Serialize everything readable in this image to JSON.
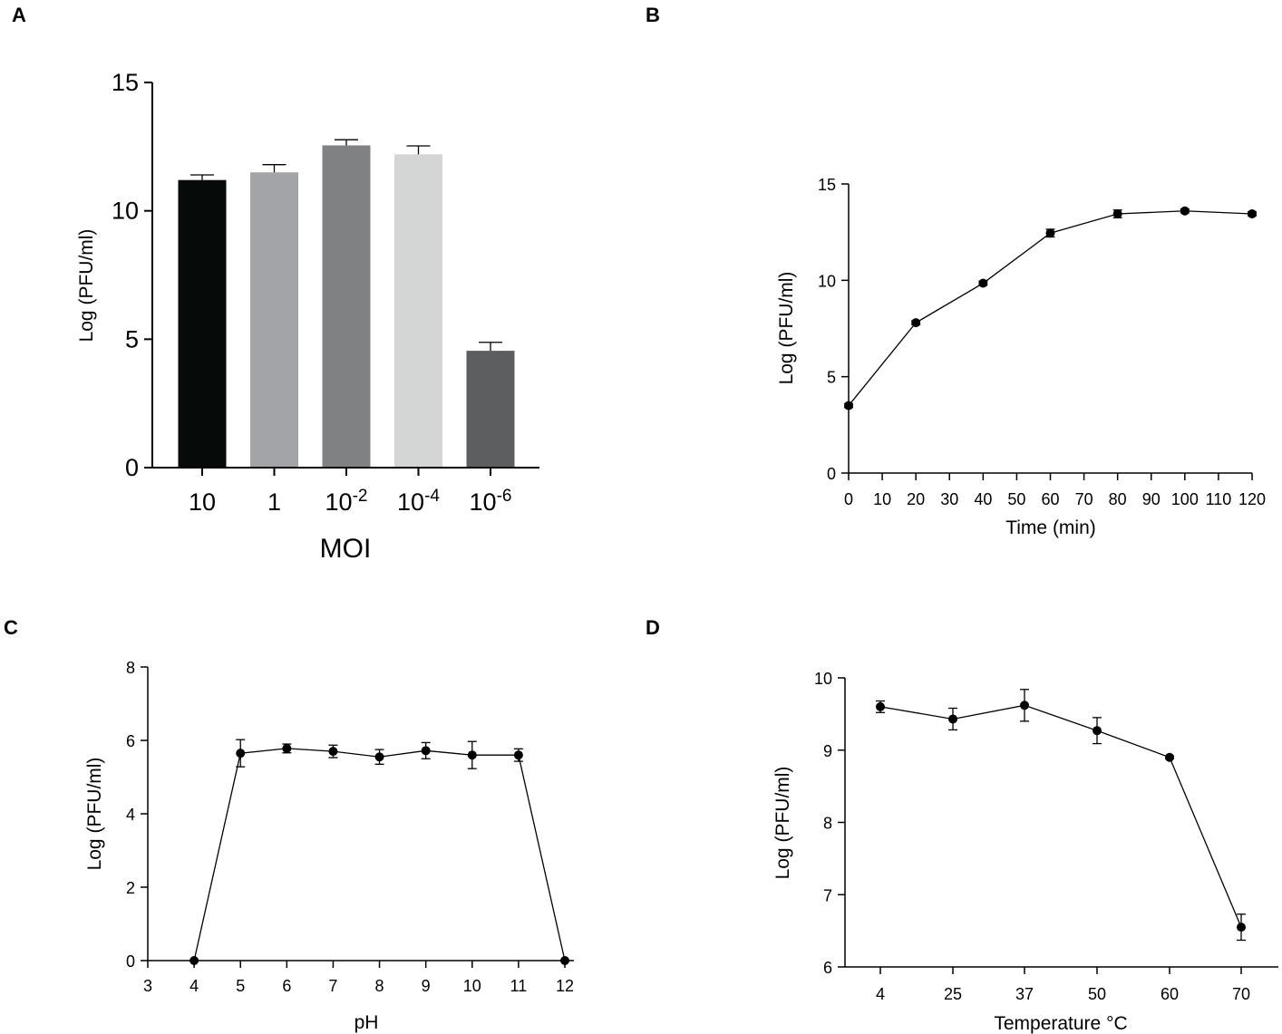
{
  "figure": {
    "panels": [
      {
        "letter": "A"
      },
      {
        "letter": "B"
      },
      {
        "letter": "C"
      },
      {
        "letter": "D"
      }
    ]
  },
  "chart_data": [
    {
      "panel": "A",
      "type": "bar",
      "title": "",
      "xlabel": "MOI",
      "ylabel": "Log (PFU/ml)",
      "categories": [
        {
          "base": "10",
          "exp": ""
        },
        {
          "base": "1",
          "exp": ""
        },
        {
          "base": "10",
          "exp": "-2"
        },
        {
          "base": "10",
          "exp": "-4"
        },
        {
          "base": "10",
          "exp": "-6"
        }
      ],
      "values": [
        11.2,
        11.5,
        12.55,
        12.2,
        4.55
      ],
      "errors": [
        0.2,
        0.3,
        0.22,
        0.33,
        0.33
      ],
      "bar_colors": [
        "#060b0a",
        "#a2a4a8",
        "#808182",
        "#d4d5d5",
        "#5d5e5f"
      ],
      "ylim": [
        0,
        15
      ],
      "yticks": [
        0,
        5,
        10,
        15
      ]
    },
    {
      "panel": "B",
      "type": "line",
      "title": "",
      "xlabel": "Time (min)",
      "ylabel": "Log (PFU/ml)",
      "x": [
        0,
        20,
        40,
        60,
        80,
        100,
        120
      ],
      "y": [
        3.5,
        7.8,
        9.85,
        12.45,
        13.45,
        13.6,
        13.45
      ],
      "errors": [
        0.1,
        0.1,
        0.1,
        0.2,
        0.2,
        0.1,
        0.1
      ],
      "xlim": [
        0,
        120
      ],
      "xticks": [
        0,
        10,
        20,
        30,
        40,
        50,
        60,
        70,
        80,
        90,
        100,
        110,
        120
      ],
      "ylim": [
        0,
        15
      ],
      "yticks": [
        0,
        5,
        10,
        15
      ]
    },
    {
      "panel": "C",
      "type": "line",
      "title": "",
      "xlabel": "pH",
      "ylabel": "Log (PFU/ml)",
      "x": [
        4,
        5,
        6,
        7,
        8,
        9,
        10,
        11,
        12
      ],
      "y": [
        0,
        5.65,
        5.78,
        5.7,
        5.55,
        5.72,
        5.6,
        5.6,
        0
      ],
      "errors": [
        0,
        0.37,
        0.12,
        0.17,
        0.2,
        0.22,
        0.37,
        0.17,
        0
      ],
      "xlim": [
        3,
        12
      ],
      "xticks": [
        3,
        4,
        5,
        6,
        7,
        8,
        9,
        10,
        11,
        12
      ],
      "ylim": [
        0,
        8
      ],
      "yticks": [
        0,
        2,
        4,
        6,
        8
      ]
    },
    {
      "panel": "D",
      "type": "line",
      "title": "",
      "xlabel": "Temperature °C",
      "ylabel": "Log (PFU/ml)",
      "categories": [
        "4",
        "25",
        "37",
        "50",
        "60",
        "70"
      ],
      "y": [
        9.6,
        9.43,
        9.62,
        9.27,
        8.9,
        6.55
      ],
      "errors": [
        0.08,
        0.15,
        0.22,
        0.18,
        0.02,
        0.18
      ],
      "ylim": [
        6,
        10
      ],
      "yticks": [
        6,
        7,
        8,
        9,
        10
      ]
    }
  ]
}
